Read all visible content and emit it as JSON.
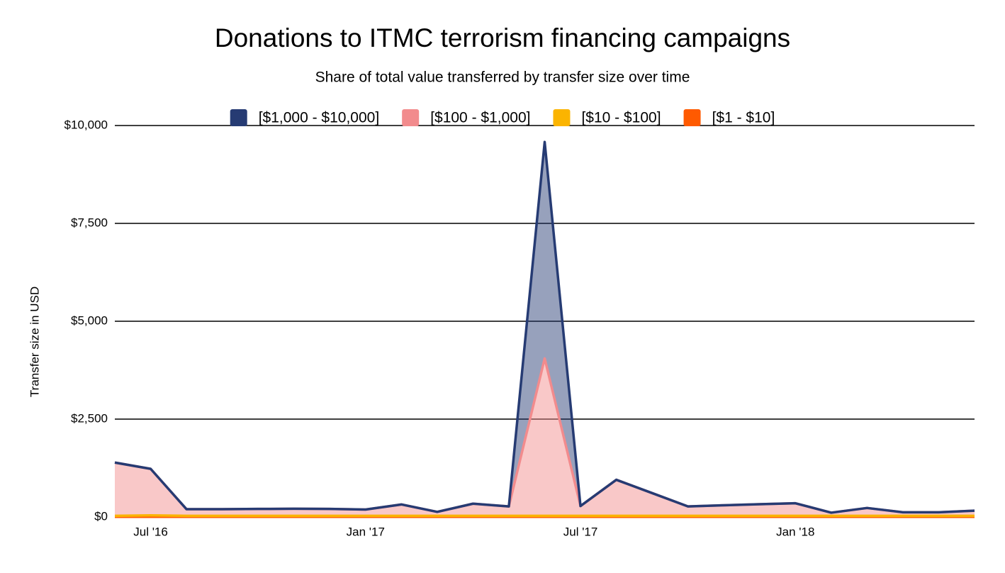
{
  "chart_data": {
    "type": "stacked-area",
    "title": "Donations to ITMC terrorism financing campaigns",
    "subtitle": "Share of total value transferred by transfer size over time",
    "y_label": "Transfer size in USD",
    "categories": [
      null,
      "Jul '16",
      null,
      null,
      null,
      null,
      null,
      "Jan '17",
      null,
      null,
      null,
      null,
      null,
      "Jul '17",
      null,
      null,
      null,
      null,
      null,
      "Jan '18",
      null,
      null,
      null,
      null,
      null
    ],
    "series": [
      {
        "name": "[$1,000 - $10,000]",
        "color": "#263b73",
        "values": [
          0,
          0,
          0,
          0,
          0,
          0,
          0,
          0,
          0,
          0,
          0,
          0,
          5530,
          0,
          0,
          0,
          0,
          0,
          0,
          0,
          0,
          0,
          0,
          0,
          0
        ]
      },
      {
        "name": "[$100 - $1,000]",
        "color": "#f28b8d",
        "values": [
          1360,
          1190,
          170,
          170,
          175,
          180,
          175,
          160,
          290,
          100,
          310,
          240,
          4020,
          250,
          920,
          580,
          240,
          270,
          295,
          320,
          80,
          200,
          90,
          90,
          130
        ]
      },
      {
        "name": "[$10 - $100]",
        "color": "#fbb400",
        "values": [
          25,
          35,
          25,
          25,
          25,
          25,
          25,
          25,
          25,
          25,
          25,
          25,
          25,
          25,
          25,
          25,
          25,
          25,
          25,
          25,
          25,
          25,
          25,
          25,
          25
        ]
      },
      {
        "name": "[$1 - $10]",
        "color": "#ff5a00",
        "values": [
          5,
          5,
          5,
          5,
          5,
          5,
          5,
          5,
          5,
          5,
          5,
          5,
          5,
          5,
          5,
          5,
          5,
          5,
          5,
          5,
          5,
          5,
          5,
          5,
          5
        ]
      }
    ],
    "ylim": [
      0,
      10000
    ],
    "yticks": [
      {
        "value": 0,
        "label": "$0"
      },
      {
        "value": 2500,
        "label": "$2,500"
      },
      {
        "value": 5000,
        "label": "$5,000"
      },
      {
        "value": 7500,
        "label": "$7,500"
      },
      {
        "value": 10000,
        "label": "$10,000"
      }
    ],
    "grid": true,
    "legend": "top"
  }
}
